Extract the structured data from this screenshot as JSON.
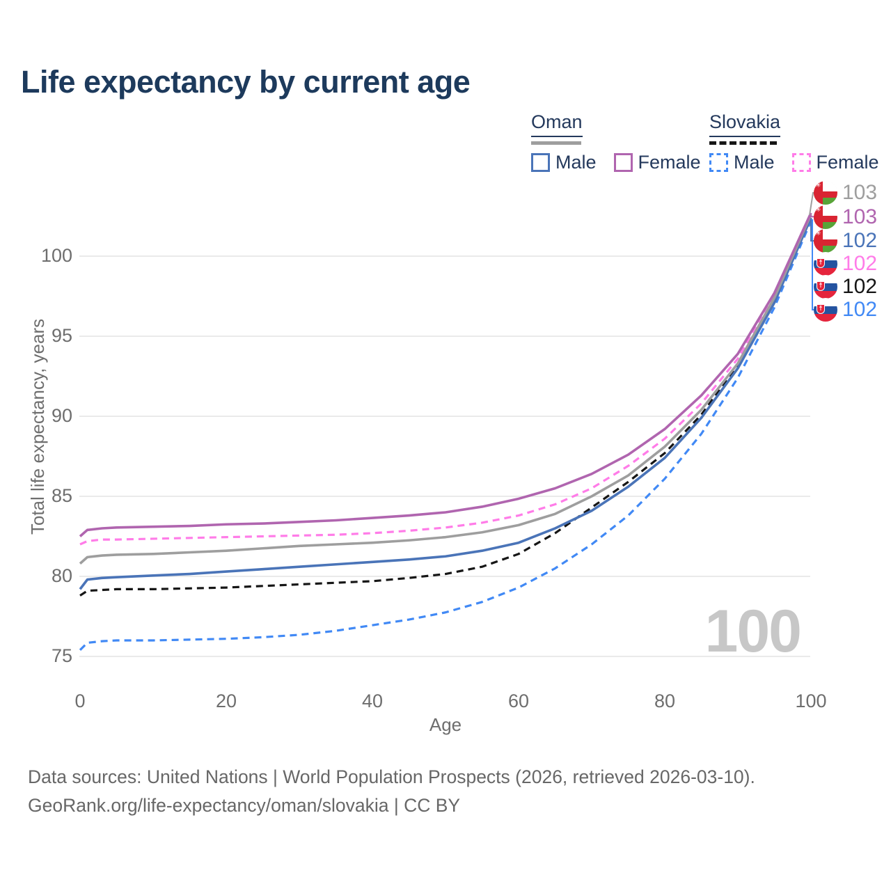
{
  "title": "Life expectancy by current age",
  "watermark": "100",
  "legend": {
    "groups": [
      {
        "label": "Oman",
        "line_color": "#9e9e9e",
        "line_style": "solid",
        "items": [
          {
            "label": "Male",
            "color": "#4a74b8",
            "style": "solid"
          },
          {
            "label": "Female",
            "color": "#b065af",
            "style": "solid"
          }
        ]
      },
      {
        "label": "Slovakia",
        "line_color": "#161616",
        "line_style": "dashed",
        "items": [
          {
            "label": "Male",
            "color": "#4189f5",
            "style": "dashed"
          },
          {
            "label": "Female",
            "color": "#ff7ce8",
            "style": "dashed"
          }
        ]
      }
    ]
  },
  "chart_data": {
    "type": "line",
    "title": "Life expectancy by current age",
    "xlabel": "Age",
    "ylabel": "Total life expectancy, years",
    "xlim": [
      0,
      100
    ],
    "ylim": [
      74,
      104
    ],
    "xticks": [
      0,
      20,
      40,
      60,
      80,
      100
    ],
    "yticks": [
      75,
      80,
      85,
      90,
      95,
      100
    ],
    "grid": "horizontal",
    "legend_position": "top-right",
    "x": [
      0,
      1,
      3,
      5,
      10,
      15,
      20,
      25,
      30,
      35,
      40,
      45,
      50,
      55,
      60,
      65,
      70,
      75,
      80,
      85,
      90,
      95,
      100
    ],
    "series": [
      {
        "name": "Oman",
        "flag": "oman",
        "sex": "both",
        "color": "#9e9e9e",
        "dash": "solid",
        "end_label": "103",
        "values": [
          80.8,
          81.2,
          81.3,
          81.35,
          81.4,
          81.5,
          81.6,
          81.75,
          81.9,
          82.0,
          82.1,
          82.25,
          82.45,
          82.75,
          83.2,
          83.9,
          85.0,
          86.3,
          88.1,
          90.4,
          93.3,
          97.4,
          102.6
        ]
      },
      {
        "name": "Oman Female",
        "flag": "oman",
        "sex": "female",
        "color": "#b065af",
        "dash": "solid",
        "end_label": "103",
        "values": [
          82.5,
          82.9,
          83.0,
          83.05,
          83.1,
          83.15,
          83.25,
          83.3,
          83.4,
          83.5,
          83.65,
          83.8,
          84.0,
          84.35,
          84.85,
          85.5,
          86.4,
          87.6,
          89.2,
          91.3,
          93.9,
          97.7,
          102.7
        ]
      },
      {
        "name": "Oman Male",
        "flag": "oman",
        "sex": "male",
        "color": "#4a74b8",
        "dash": "solid",
        "end_label": "102",
        "values": [
          79.2,
          79.8,
          79.9,
          79.95,
          80.05,
          80.15,
          80.3,
          80.45,
          80.6,
          80.75,
          80.9,
          81.05,
          81.25,
          81.6,
          82.1,
          83.0,
          84.1,
          85.6,
          87.4,
          89.9,
          93.0,
          97.1,
          102.4
        ]
      },
      {
        "name": "Slovakia Female",
        "flag": "slovakia",
        "sex": "female",
        "color": "#ff7ce8",
        "dash": "dashed",
        "end_label": "102",
        "values": [
          82.0,
          82.2,
          82.3,
          82.3,
          82.35,
          82.4,
          82.45,
          82.5,
          82.55,
          82.6,
          82.7,
          82.85,
          83.05,
          83.35,
          83.8,
          84.5,
          85.5,
          86.9,
          88.6,
          90.8,
          93.6,
          97.5,
          102.5
        ]
      },
      {
        "name": "Slovakia",
        "flag": "slovakia",
        "sex": "both",
        "color": "#161616",
        "dash": "dashed",
        "end_label": "102",
        "values": [
          78.8,
          79.1,
          79.15,
          79.2,
          79.2,
          79.25,
          79.3,
          79.4,
          79.5,
          79.6,
          79.7,
          79.9,
          80.15,
          80.6,
          81.4,
          82.7,
          84.3,
          85.9,
          87.7,
          90.1,
          93.2,
          97.2,
          102.4
        ]
      },
      {
        "name": "Slovakia Male",
        "flag": "slovakia",
        "sex": "male",
        "color": "#4189f5",
        "dash": "dashed",
        "end_label": "102",
        "values": [
          75.4,
          75.85,
          75.95,
          76.0,
          76.0,
          76.05,
          76.1,
          76.2,
          76.35,
          76.6,
          76.95,
          77.3,
          77.75,
          78.4,
          79.3,
          80.5,
          82.0,
          83.8,
          86.1,
          88.9,
          92.4,
          96.8,
          102.2
        ]
      }
    ]
  },
  "footer": {
    "line1": "Data sources: United Nations | World Population Prospects (2026, retrieved 2026-03-10).",
    "line2": "GeoRank.org/life-expectancy/oman/slovakia | CC BY"
  }
}
